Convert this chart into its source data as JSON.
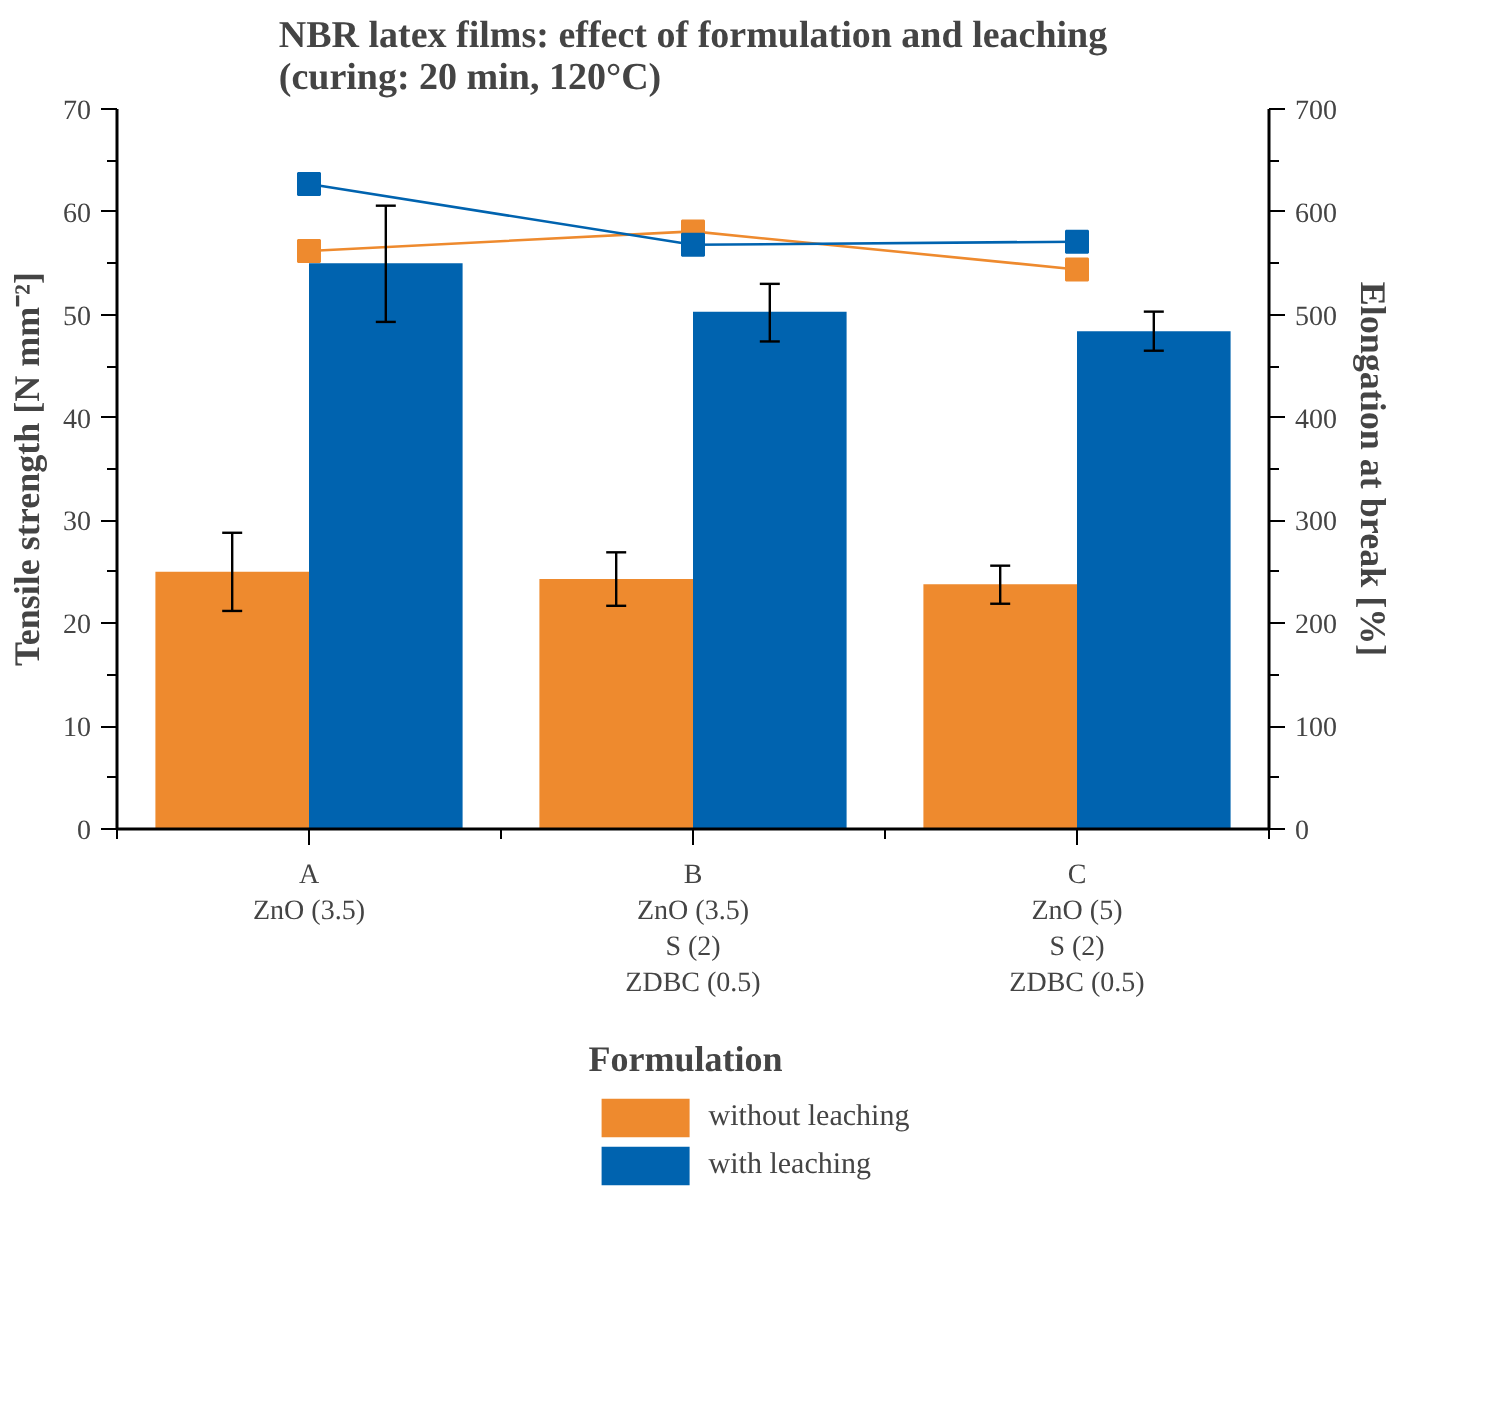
{
  "chart_data": {
    "type": "bar",
    "title": "NBR latex films: effect of formulation and leaching\n(curing: 20 min, 120°C)",
    "ylabel": "Tensile strength [N mm⁻²]",
    "y2label": "Elongation at break [%]",
    "legend_title": "Formulation",
    "categories": [
      "A\nZnO (3.5)",
      "B\nZnO (3.5)\nS (2)\nZDBC (0.5)",
      "C\nZnO (5)\nS (2)\nZDBC (0.5)"
    ],
    "series": [
      {
        "name": "without leaching",
        "color": "#ee8a2e",
        "values": [
          25.0,
          24.3,
          23.8
        ],
        "errors": [
          [
            21.2,
            28.8
          ],
          [
            21.7,
            26.9
          ],
          [
            21.9,
            25.6
          ]
        ]
      },
      {
        "name": "with leaching",
        "color": "#0063af",
        "values": [
          55.0,
          50.3,
          48.4
        ],
        "errors": [
          [
            49.3,
            60.6
          ],
          [
            47.4,
            53.0
          ],
          [
            46.5,
            50.3
          ]
        ]
      },
      {
        "type": "line",
        "axis": "y2",
        "color": "#ee8a2e",
        "values": [
          562,
          581,
          544
        ]
      },
      {
        "type": "line",
        "axis": "y2",
        "color": "#0063af",
        "values": [
          627,
          568,
          571
        ]
      }
    ],
    "ylim": [
      0,
      70
    ],
    "yticks": [
      0,
      10,
      20,
      30,
      40,
      50,
      60,
      70
    ],
    "y2lim": [
      0,
      700
    ],
    "y2ticks": [
      0,
      100,
      200,
      300,
      400,
      500,
      600,
      700
    ],
    "grid": false,
    "legend": "bottom",
    "marker": "square",
    "line_style": "solid"
  }
}
